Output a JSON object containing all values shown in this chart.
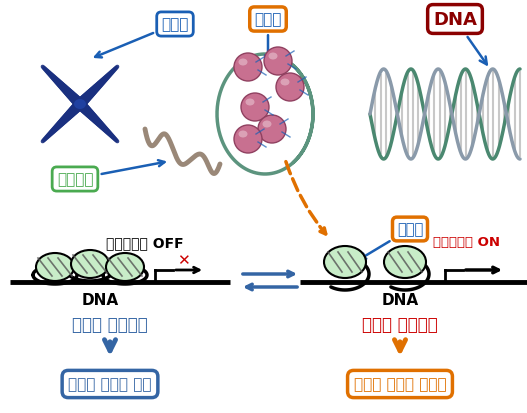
{
  "bg_color": "#ffffff",
  "labels": {
    "chromosome": "염색체",
    "histone_top": "히스톤",
    "dna_top": "DNA",
    "chromatin": "크로마틴",
    "transcription_off": "유전자전사 OFF",
    "dna_left": "DNA",
    "condensed_chromatin": "응집한 크로마틴",
    "inhibition_box": "유전자 전사의 억제",
    "histone_mid": "히스톤",
    "transcription_on": "유전자전사 ON",
    "dna_right": "DNA",
    "loose_chromatin": "느슨한 크로마틴",
    "activation_box": "유전자 전사의 활성화"
  },
  "colors": {
    "blue": "#1a5fb4",
    "blue_arrow": "#3465a4",
    "orange": "#e07000",
    "orange_box": "#e07000",
    "red": "#cc0000",
    "green_box": "#4aaa50",
    "green_fill": "#c8edc8",
    "dark_red": "#8b0000",
    "histone_pink": "#c87090",
    "histone_light": "#e0a0b8",
    "dna_teal": "#4a8870",
    "dna_gray": "#8a9aaa",
    "chromosome_blue": "#1a3080",
    "chromatin_strand": "#9a8878",
    "black": "#000000"
  },
  "figsize": [
    5.27,
    4.14
  ],
  "dpi": 100
}
